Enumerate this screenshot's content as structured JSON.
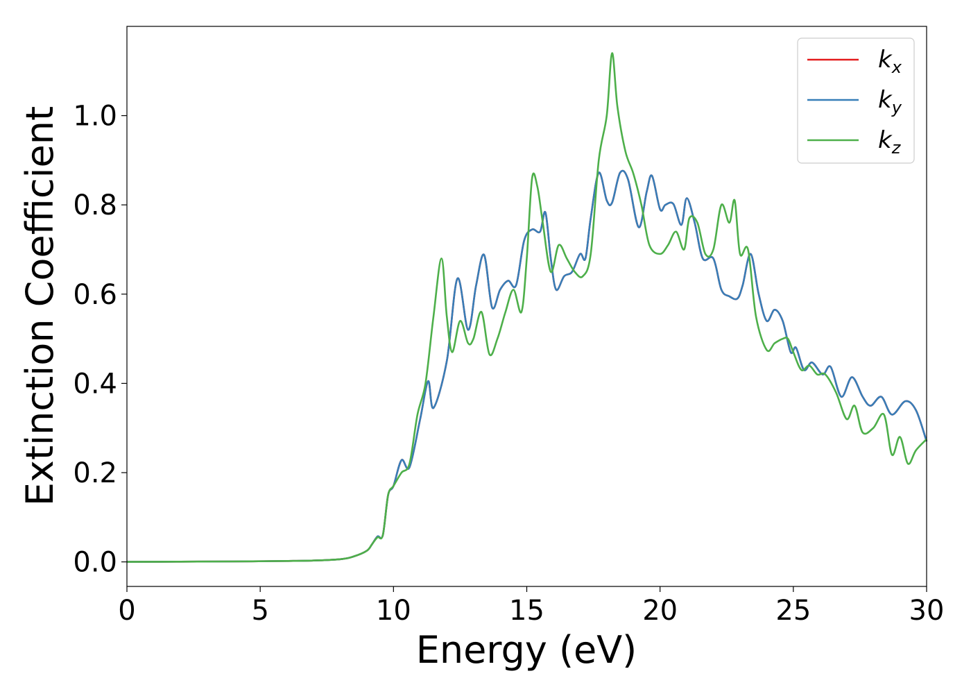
{
  "chart_data": {
    "type": "line",
    "title": "",
    "xlabel": "Energy (eV)",
    "ylabel": "Extinction Coefficient",
    "xlim": [
      0,
      30
    ],
    "ylim": [
      -0.055,
      1.2
    ],
    "xticks": [
      "0",
      "5",
      "10",
      "15",
      "20",
      "25",
      "30"
    ],
    "yticks": [
      "0.0",
      "0.2",
      "0.4",
      "0.6",
      "0.8",
      "1.0"
    ],
    "grid": false,
    "legend": {
      "position": "top-right",
      "entries": [
        {
          "base": "k",
          "sub": "x",
          "color": "#e41a1c"
        },
        {
          "base": "k",
          "sub": "y",
          "color": "#377eb8"
        },
        {
          "base": "k",
          "sub": "z",
          "color": "#4daf4a"
        }
      ]
    },
    "series": [
      {
        "name": "kx",
        "color": "#e41a1c",
        "x": [
          0,
          2,
          4,
          6,
          7,
          8,
          8.5,
          9.0,
          9.2,
          9.4,
          9.6,
          9.8,
          10.0,
          10.3,
          10.6,
          11.0,
          11.3,
          11.5,
          12.0,
          12.4,
          12.8,
          13.1,
          13.4,
          13.7,
          14.0,
          14.3,
          14.6,
          14.9,
          15.2,
          15.5,
          15.7,
          15.9,
          16.1,
          16.4,
          16.7,
          17.0,
          17.2,
          17.4,
          17.7,
          18.0,
          18.2,
          18.5,
          18.8,
          19.2,
          19.5,
          19.7,
          20.0,
          20.2,
          20.5,
          20.8,
          21.0,
          21.3,
          21.6,
          22.0,
          22.3,
          22.6,
          22.9,
          23.1,
          23.4,
          23.7,
          24.0,
          24.3,
          24.6,
          24.9,
          25.1,
          25.4,
          25.7,
          26.1,
          26.4,
          26.8,
          27.2,
          27.6,
          27.9,
          28.3,
          28.7,
          29.2,
          29.6,
          30.0
        ],
        "y": [
          0.0,
          0.0005,
          0.001,
          0.002,
          0.003,
          0.006,
          0.012,
          0.025,
          0.04,
          0.057,
          0.06,
          0.15,
          0.17,
          0.228,
          0.212,
          0.32,
          0.405,
          0.345,
          0.45,
          0.635,
          0.52,
          0.62,
          0.688,
          0.57,
          0.61,
          0.63,
          0.62,
          0.72,
          0.745,
          0.74,
          0.783,
          0.68,
          0.61,
          0.64,
          0.65,
          0.69,
          0.68,
          0.77,
          0.872,
          0.81,
          0.805,
          0.872,
          0.857,
          0.75,
          0.83,
          0.865,
          0.79,
          0.8,
          0.802,
          0.755,
          0.815,
          0.76,
          0.68,
          0.68,
          0.61,
          0.595,
          0.59,
          0.62,
          0.69,
          0.6,
          0.54,
          0.565,
          0.54,
          0.47,
          0.48,
          0.43,
          0.447,
          0.42,
          0.437,
          0.37,
          0.414,
          0.37,
          0.35,
          0.37,
          0.33,
          0.36,
          0.34,
          0.27
        ]
      },
      {
        "name": "ky",
        "color": "#377eb8",
        "x": [
          0,
          2,
          4,
          6,
          7,
          8,
          8.5,
          9.0,
          9.2,
          9.4,
          9.6,
          9.8,
          10.0,
          10.3,
          10.6,
          11.0,
          11.3,
          11.5,
          12.0,
          12.4,
          12.8,
          13.1,
          13.4,
          13.7,
          14.0,
          14.3,
          14.6,
          14.9,
          15.2,
          15.5,
          15.7,
          15.9,
          16.1,
          16.4,
          16.7,
          17.0,
          17.2,
          17.4,
          17.7,
          18.0,
          18.2,
          18.5,
          18.8,
          19.2,
          19.5,
          19.7,
          20.0,
          20.2,
          20.5,
          20.8,
          21.0,
          21.3,
          21.6,
          22.0,
          22.3,
          22.6,
          22.9,
          23.1,
          23.4,
          23.7,
          24.0,
          24.3,
          24.6,
          24.9,
          25.1,
          25.4,
          25.7,
          26.1,
          26.4,
          26.8,
          27.2,
          27.6,
          27.9,
          28.3,
          28.7,
          29.2,
          29.6,
          30.0
        ],
        "y": [
          0.0,
          0.0005,
          0.001,
          0.002,
          0.003,
          0.006,
          0.012,
          0.025,
          0.04,
          0.057,
          0.06,
          0.15,
          0.17,
          0.228,
          0.212,
          0.32,
          0.405,
          0.345,
          0.45,
          0.635,
          0.52,
          0.62,
          0.688,
          0.57,
          0.61,
          0.63,
          0.62,
          0.72,
          0.745,
          0.74,
          0.783,
          0.68,
          0.61,
          0.64,
          0.65,
          0.69,
          0.68,
          0.77,
          0.872,
          0.81,
          0.805,
          0.872,
          0.857,
          0.75,
          0.83,
          0.865,
          0.79,
          0.8,
          0.802,
          0.755,
          0.815,
          0.76,
          0.68,
          0.68,
          0.61,
          0.595,
          0.59,
          0.62,
          0.69,
          0.6,
          0.54,
          0.565,
          0.54,
          0.47,
          0.48,
          0.43,
          0.447,
          0.42,
          0.437,
          0.37,
          0.414,
          0.37,
          0.35,
          0.37,
          0.33,
          0.36,
          0.34,
          0.27
        ]
      },
      {
        "name": "kz",
        "color": "#4daf4a",
        "x": [
          0,
          2,
          4,
          6,
          7,
          8,
          8.5,
          9.0,
          9.2,
          9.4,
          9.6,
          9.8,
          10.0,
          10.3,
          10.6,
          10.9,
          11.2,
          11.5,
          11.8,
          12.0,
          12.2,
          12.5,
          12.8,
          13.0,
          13.3,
          13.6,
          13.9,
          14.2,
          14.5,
          14.8,
          15.0,
          15.2,
          15.4,
          15.6,
          15.9,
          16.2,
          16.5,
          16.8,
          17.1,
          17.4,
          17.7,
          18.0,
          18.2,
          18.4,
          18.7,
          19.0,
          19.3,
          19.6,
          20.0,
          20.3,
          20.6,
          20.9,
          21.1,
          21.4,
          21.7,
          22.0,
          22.3,
          22.6,
          22.8,
          23.0,
          23.3,
          23.6,
          24.0,
          24.3,
          24.6,
          24.8,
          25.0,
          25.3,
          25.6,
          25.9,
          26.2,
          26.6,
          27.0,
          27.3,
          27.6,
          28.0,
          28.4,
          28.7,
          29.0,
          29.3,
          29.6,
          30.0
        ],
        "y": [
          0.0,
          0.0005,
          0.001,
          0.002,
          0.003,
          0.006,
          0.012,
          0.025,
          0.04,
          0.055,
          0.06,
          0.15,
          0.17,
          0.2,
          0.22,
          0.33,
          0.4,
          0.55,
          0.68,
          0.55,
          0.47,
          0.54,
          0.49,
          0.5,
          0.56,
          0.465,
          0.5,
          0.56,
          0.61,
          0.56,
          0.68,
          0.86,
          0.84,
          0.76,
          0.65,
          0.71,
          0.68,
          0.65,
          0.64,
          0.69,
          0.9,
          1.0,
          1.14,
          1.02,
          0.92,
          0.87,
          0.8,
          0.71,
          0.69,
          0.71,
          0.74,
          0.7,
          0.77,
          0.76,
          0.69,
          0.7,
          0.8,
          0.76,
          0.81,
          0.69,
          0.7,
          0.55,
          0.475,
          0.49,
          0.5,
          0.5,
          0.47,
          0.43,
          0.44,
          0.42,
          0.42,
          0.38,
          0.32,
          0.35,
          0.29,
          0.3,
          0.33,
          0.24,
          0.28,
          0.22,
          0.25,
          0.275
        ]
      }
    ]
  }
}
